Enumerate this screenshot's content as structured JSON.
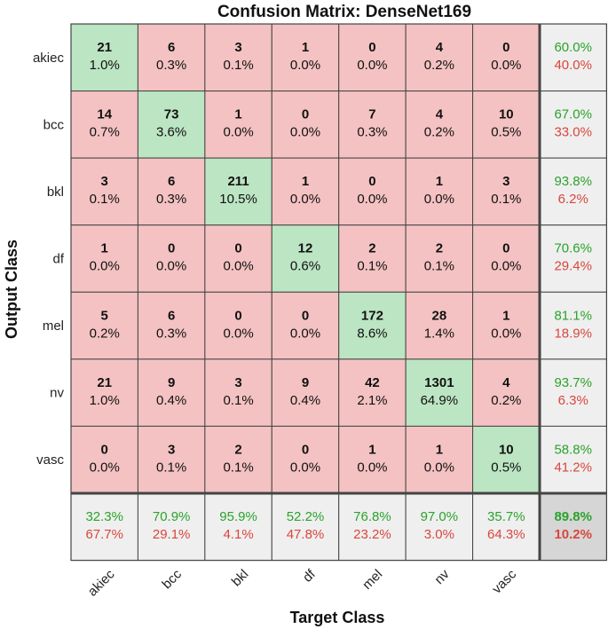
{
  "chart_data": {
    "type": "heatmap",
    "title": "Confusion Matrix: DenseNet169",
    "xlabel": "Target Class",
    "ylabel": "Output Class",
    "classes": [
      "akiec",
      "bcc",
      "bkl",
      "df",
      "mel",
      "nv",
      "vasc"
    ],
    "cells": [
      [
        {
          "count": "21",
          "pct": "1.0%"
        },
        {
          "count": "6",
          "pct": "0.3%"
        },
        {
          "count": "3",
          "pct": "0.1%"
        },
        {
          "count": "1",
          "pct": "0.0%"
        },
        {
          "count": "0",
          "pct": "0.0%"
        },
        {
          "count": "4",
          "pct": "0.2%"
        },
        {
          "count": "0",
          "pct": "0.0%"
        }
      ],
      [
        {
          "count": "14",
          "pct": "0.7%"
        },
        {
          "count": "73",
          "pct": "3.6%"
        },
        {
          "count": "1",
          "pct": "0.0%"
        },
        {
          "count": "0",
          "pct": "0.0%"
        },
        {
          "count": "7",
          "pct": "0.3%"
        },
        {
          "count": "4",
          "pct": "0.2%"
        },
        {
          "count": "10",
          "pct": "0.5%"
        }
      ],
      [
        {
          "count": "3",
          "pct": "0.1%"
        },
        {
          "count": "6",
          "pct": "0.3%"
        },
        {
          "count": "211",
          "pct": "10.5%"
        },
        {
          "count": "1",
          "pct": "0.0%"
        },
        {
          "count": "0",
          "pct": "0.0%"
        },
        {
          "count": "1",
          "pct": "0.0%"
        },
        {
          "count": "3",
          "pct": "0.1%"
        }
      ],
      [
        {
          "count": "1",
          "pct": "0.0%"
        },
        {
          "count": "0",
          "pct": "0.0%"
        },
        {
          "count": "0",
          "pct": "0.0%"
        },
        {
          "count": "12",
          "pct": "0.6%"
        },
        {
          "count": "2",
          "pct": "0.1%"
        },
        {
          "count": "2",
          "pct": "0.1%"
        },
        {
          "count": "0",
          "pct": "0.0%"
        }
      ],
      [
        {
          "count": "5",
          "pct": "0.2%"
        },
        {
          "count": "6",
          "pct": "0.3%"
        },
        {
          "count": "0",
          "pct": "0.0%"
        },
        {
          "count": "0",
          "pct": "0.0%"
        },
        {
          "count": "172",
          "pct": "8.6%"
        },
        {
          "count": "28",
          "pct": "1.4%"
        },
        {
          "count": "1",
          "pct": "0.0%"
        }
      ],
      [
        {
          "count": "21",
          "pct": "1.0%"
        },
        {
          "count": "9",
          "pct": "0.4%"
        },
        {
          "count": "3",
          "pct": "0.1%"
        },
        {
          "count": "9",
          "pct": "0.4%"
        },
        {
          "count": "42",
          "pct": "2.1%"
        },
        {
          "count": "1301",
          "pct": "64.9%"
        },
        {
          "count": "4",
          "pct": "0.2%"
        }
      ],
      [
        {
          "count": "0",
          "pct": "0.0%"
        },
        {
          "count": "3",
          "pct": "0.1%"
        },
        {
          "count": "2",
          "pct": "0.1%"
        },
        {
          "count": "0",
          "pct": "0.0%"
        },
        {
          "count": "1",
          "pct": "0.0%"
        },
        {
          "count": "1",
          "pct": "0.0%"
        },
        {
          "count": "10",
          "pct": "0.5%"
        }
      ]
    ],
    "row_summary": [
      {
        "correct": "60.0%",
        "error": "40.0%"
      },
      {
        "correct": "67.0%",
        "error": "33.0%"
      },
      {
        "correct": "93.8%",
        "error": "6.2%"
      },
      {
        "correct": "70.6%",
        "error": "29.4%"
      },
      {
        "correct": "81.1%",
        "error": "18.9%"
      },
      {
        "correct": "93.7%",
        "error": "6.3%"
      },
      {
        "correct": "58.8%",
        "error": "41.2%"
      }
    ],
    "col_summary": [
      {
        "correct": "32.3%",
        "error": "67.7%"
      },
      {
        "correct": "70.9%",
        "error": "29.1%"
      },
      {
        "correct": "95.9%",
        "error": "4.1%"
      },
      {
        "correct": "52.2%",
        "error": "47.8%"
      },
      {
        "correct": "76.8%",
        "error": "23.2%"
      },
      {
        "correct": "97.0%",
        "error": "3.0%"
      },
      {
        "correct": "35.7%",
        "error": "64.3%"
      }
    ],
    "overall": {
      "correct": "89.8%",
      "error": "10.2%"
    }
  },
  "colors": {
    "diagonal": "#bce5c3",
    "off_diagonal": "#f4c2c2",
    "summary": "#efefef",
    "overall": "#d6d6d6",
    "good_text": "#2aa32a",
    "bad_text": "#d9463c",
    "grid": "#444444"
  }
}
